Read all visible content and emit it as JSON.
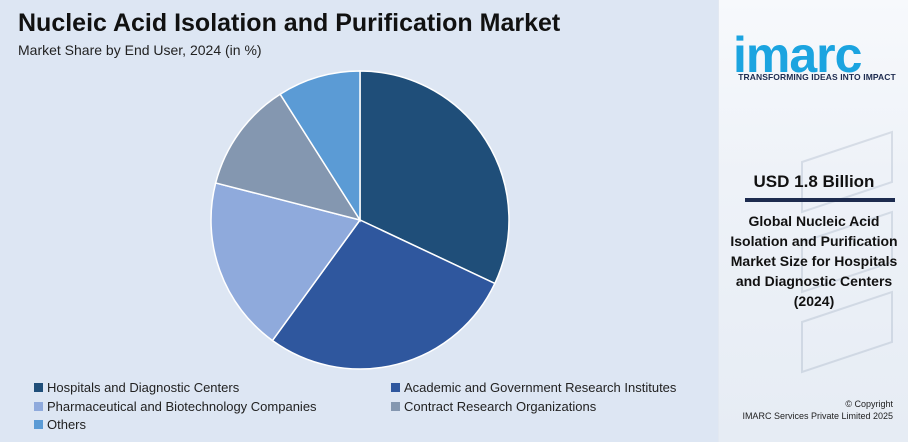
{
  "header": {
    "title": "Nucleic Acid Isolation and Purification Market",
    "subtitle": "Market Share by End User, 2024 (in %)"
  },
  "chart_data": {
    "type": "pie",
    "title": "Nucleic Acid Isolation and Purification Market",
    "subtitle": "Market Share by End User, 2024 (in %)",
    "start_angle_deg": 0,
    "direction": "clockwise",
    "legend_position": "bottom",
    "slices": [
      {
        "label": "Hospitals and Diagnostic Centers",
        "value": 32,
        "color": "#1f4e79"
      },
      {
        "label": "Academic and Government Research Institutes",
        "value": 28,
        "color": "#2f579e"
      },
      {
        "label": "Pharmaceutical and Biotechnology Companies",
        "value": 19,
        "color": "#8faadc"
      },
      {
        "label": "Contract Research Organizations",
        "value": 12,
        "color": "#8497b0"
      },
      {
        "label": "Others",
        "value": 9,
        "color": "#5b9bd5"
      }
    ]
  },
  "sidebar": {
    "logo_text": "imarc",
    "tagline": "TRANSFORMING IDEAS INTO IMPACT",
    "amount": "USD 1.8 Billion",
    "description": "Global Nucleic Acid Isolation and Purification Market Size for Hospitals and Diagnostic Centers (2024)",
    "copyright_line1": "© Copyright",
    "copyright_line2": "IMARC Services Private Limited 2025",
    "brand_color": "#1ba4e0",
    "dark_color": "#1d2b4f"
  }
}
